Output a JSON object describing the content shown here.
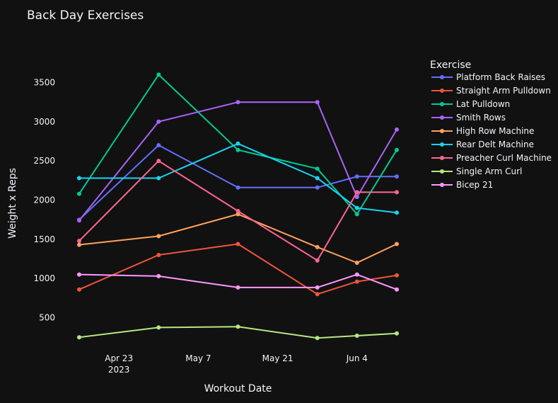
{
  "chart_data": {
    "type": "line",
    "title": "Back Day Exercises",
    "xlabel": "Workout Date",
    "ylabel": "Weight x Reps",
    "legend_title": "Exercise",
    "legend_position": "top-right",
    "grid": false,
    "x": [
      "2023-04-16",
      "2023-04-30",
      "2023-05-14",
      "2023-05-28",
      "2023-06-04",
      "2023-06-11"
    ],
    "xlim": [
      "2023-04-13",
      "2023-06-14"
    ],
    "ylim": [
      80,
      3920
    ],
    "x_ticks": [
      {
        "date": "2023-04-23",
        "label": "Apr 23",
        "sublabel": "2023"
      },
      {
        "date": "2023-05-07",
        "label": "May 7",
        "sublabel": ""
      },
      {
        "date": "2023-05-21",
        "label": "May 21",
        "sublabel": ""
      },
      {
        "date": "2023-06-04",
        "label": "Jun 4",
        "sublabel": ""
      }
    ],
    "y_ticks": [
      {
        "value": 500,
        "label": "500"
      },
      {
        "value": 1000,
        "label": "1000"
      },
      {
        "value": 1500,
        "label": "1500"
      },
      {
        "value": 2000,
        "label": "2000"
      },
      {
        "value": 2500,
        "label": "2500"
      },
      {
        "value": 3000,
        "label": "3000"
      },
      {
        "value": 3500,
        "label": "3500"
      }
    ],
    "series": [
      {
        "name": "Platform Back Raises",
        "color": "#636efa",
        "values": [
          1750,
          2700,
          2160,
          2160,
          2300,
          2300
        ]
      },
      {
        "name": "Straight Arm Pulldown",
        "color": "#ef553b",
        "values": [
          860,
          1300,
          1440,
          800,
          960,
          1040
        ]
      },
      {
        "name": "Lat Pulldown",
        "color": "#00cc96",
        "values": [
          2080,
          3600,
          2640,
          2400,
          1820,
          2640
        ]
      },
      {
        "name": "Smith Rows",
        "color": "#ab63fa",
        "values": [
          1740,
          3000,
          3250,
          3250,
          2040,
          2900
        ]
      },
      {
        "name": "High Row Machine",
        "color": "#ffa15a",
        "values": [
          1430,
          1540,
          1820,
          1400,
          1200,
          1440
        ]
      },
      {
        "name": "Rear Delt Machine",
        "color": "#19d3f3",
        "values": [
          2280,
          2280,
          2720,
          2280,
          1900,
          1840
        ]
      },
      {
        "name": "Preacher Curl Machine",
        "color": "#ff6692",
        "values": [
          1480,
          2500,
          1860,
          1230,
          2100,
          2100
        ]
      },
      {
        "name": "Single Arm Curl",
        "color": "#b6e880",
        "values": [
          250,
          375,
          385,
          240,
          270,
          300
        ]
      },
      {
        "name": "Bicep 21",
        "color": "#ff97ff",
        "values": [
          1050,
          1030,
          885,
          885,
          1050,
          860
        ]
      }
    ]
  }
}
